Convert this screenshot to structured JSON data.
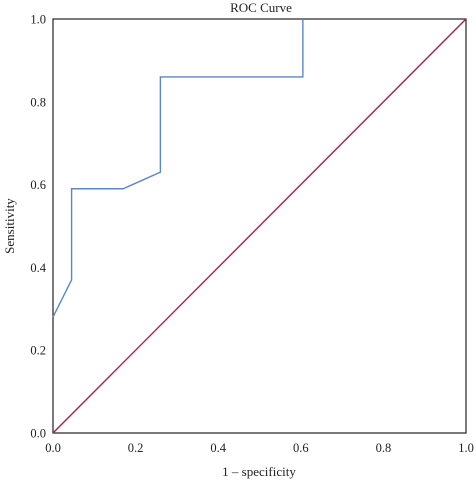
{
  "chart_data": {
    "type": "line",
    "title": "ROC Curve",
    "xlabel": "1 – specificity",
    "ylabel": "Sensitivity",
    "xlim": [
      0,
      1
    ],
    "ylim": [
      0,
      1
    ],
    "xticks": [
      "0.0",
      "0.2",
      "0.4",
      "0.6",
      "0.8",
      "1.0"
    ],
    "yticks": [
      "0.0",
      "0.2",
      "0.4",
      "0.6",
      "0.8",
      "1.0"
    ],
    "grid": false,
    "legend": "none",
    "series": [
      {
        "color": "#5b87c6",
        "points": [
          [
            0.0,
            0.28
          ],
          [
            0.045,
            0.37
          ],
          [
            0.045,
            0.59
          ],
          [
            0.17,
            0.59
          ],
          [
            0.26,
            0.63
          ],
          [
            0.26,
            0.86
          ],
          [
            0.605,
            0.86
          ],
          [
            0.605,
            1.0
          ]
        ]
      },
      {
        "color": "#a3224c",
        "points": [
          [
            0.0,
            0.0
          ],
          [
            1.0,
            1.0
          ]
        ]
      }
    ]
  }
}
